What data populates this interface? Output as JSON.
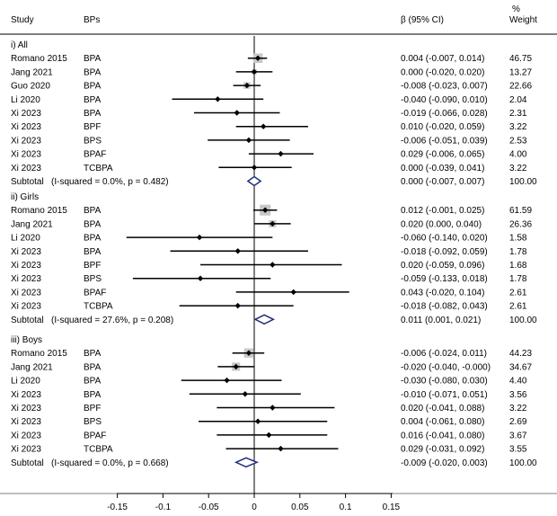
{
  "chart_data": {
    "type": "forest",
    "headers": {
      "study": "Study",
      "bps": "BPs",
      "beta": "β (95% CI)",
      "weight_line1": "%",
      "weight_line2": "Weight"
    },
    "xlim": [
      -0.2,
      0.15
    ],
    "xticks": [
      "-0.15",
      "-0.1",
      "-0.05",
      "0",
      "0.05",
      "0.1",
      "0.15"
    ],
    "xtick_values": [
      -0.15,
      -0.1,
      -0.05,
      0,
      0.05,
      0.1,
      0.15
    ],
    "groups": [
      {
        "title": "i) All",
        "rows": [
          {
            "study": "Romano 2015",
            "bp": "BPA",
            "beta": 0.004,
            "lo": -0.007,
            "hi": 0.014,
            "ci_text": "0.004 (-0.007, 0.014)",
            "weight": "46.75"
          },
          {
            "study": "Jang 2021",
            "bp": "BPA",
            "beta": 0.0,
            "lo": -0.02,
            "hi": 0.02,
            "ci_text": "0.000 (-0.020, 0.020)",
            "weight": "13.27"
          },
          {
            "study": "Guo 2020",
            "bp": "BPA",
            "beta": -0.008,
            "lo": -0.023,
            "hi": 0.007,
            "ci_text": "-0.008 (-0.023, 0.007)",
            "weight": "22.66"
          },
          {
            "study": "Li 2020",
            "bp": "BPA",
            "beta": -0.04,
            "lo": -0.09,
            "hi": 0.01,
            "ci_text": "-0.040 (-0.090, 0.010)",
            "weight": "2.04"
          },
          {
            "study": "Xi 2023",
            "bp": "BPA",
            "beta": -0.019,
            "lo": -0.066,
            "hi": 0.028,
            "ci_text": "-0.019 (-0.066, 0.028)",
            "weight": "2.31"
          },
          {
            "study": "Xi 2023",
            "bp": "BPF",
            "beta": 0.01,
            "lo": -0.02,
            "hi": 0.059,
            "ci_text": "0.010 (-0.020, 0.059)",
            "weight": "3.22"
          },
          {
            "study": "Xi 2023",
            "bp": "BPS",
            "beta": -0.006,
            "lo": -0.051,
            "hi": 0.039,
            "ci_text": "-0.006 (-0.051, 0.039)",
            "weight": "2.53"
          },
          {
            "study": "Xi 2023",
            "bp": "BPAF",
            "beta": 0.029,
            "lo": -0.006,
            "hi": 0.065,
            "ci_text": "0.029 (-0.006, 0.065)",
            "weight": "4.00"
          },
          {
            "study": "Xi 2023",
            "bp": "TCBPA",
            "beta": 0.0,
            "lo": -0.039,
            "hi": 0.041,
            "ci_text": "0.000 (-0.039, 0.041)",
            "weight": "3.22"
          }
        ],
        "subtotal": {
          "label": "Subtotal",
          "het": "(I-squared = 0.0%, p = 0.482)",
          "beta": 0.0,
          "lo": -0.007,
          "hi": 0.007,
          "ci_text": "0.000 (-0.007, 0.007)",
          "weight": "100.00"
        }
      },
      {
        "title": "ii) Girls",
        "rows": [
          {
            "study": "Romano 2015",
            "bp": "BPA",
            "beta": 0.012,
            "lo": -0.001,
            "hi": 0.025,
            "ci_text": "0.012 (-0.001, 0.025)",
            "weight": "61.59"
          },
          {
            "study": "Jang 2021",
            "bp": "BPA",
            "beta": 0.02,
            "lo": 0.0,
            "hi": 0.04,
            "ci_text": "0.020 (0.000, 0.040)",
            "weight": "26.36"
          },
          {
            "study": "Li 2020",
            "bp": "BPA",
            "beta": -0.06,
            "lo": -0.14,
            "hi": 0.02,
            "ci_text": "-0.060 (-0.140, 0.020)",
            "weight": "1.58"
          },
          {
            "study": "Xi 2023",
            "bp": "BPA",
            "beta": -0.018,
            "lo": -0.092,
            "hi": 0.059,
            "ci_text": "-0.018 (-0.092, 0.059)",
            "weight": "1.78"
          },
          {
            "study": "Xi 2023",
            "bp": "BPF",
            "beta": 0.02,
            "lo": -0.059,
            "hi": 0.096,
            "ci_text": "0.020 (-0.059, 0.096)",
            "weight": "1.68"
          },
          {
            "study": "Xi 2023",
            "bp": "BPS",
            "beta": -0.059,
            "lo": -0.133,
            "hi": 0.018,
            "ci_text": "-0.059 (-0.133, 0.018)",
            "weight": "1.78"
          },
          {
            "study": "Xi 2023",
            "bp": "BPAF",
            "beta": 0.043,
            "lo": -0.02,
            "hi": 0.104,
            "ci_text": "0.043 (-0.020, 0.104)",
            "weight": "2.61"
          },
          {
            "study": "Xi 2023",
            "bp": "TCBPA",
            "beta": -0.018,
            "lo": -0.082,
            "hi": 0.043,
            "ci_text": "-0.018 (-0.082, 0.043)",
            "weight": "2.61"
          }
        ],
        "subtotal": {
          "label": "Subtotal",
          "het": "(I-squared = 27.6%, p = 0.208)",
          "beta": 0.011,
          "lo": 0.001,
          "hi": 0.021,
          "ci_text": "0.011 (0.001, 0.021)",
          "weight": "100.00"
        }
      },
      {
        "title": "iii) Boys",
        "rows": [
          {
            "study": "Romano 2015",
            "bp": "BPA",
            "beta": -0.006,
            "lo": -0.024,
            "hi": 0.011,
            "ci_text": "-0.006 (-0.024, 0.011)",
            "weight": "44.23"
          },
          {
            "study": "Jang 2021",
            "bp": "BPA",
            "beta": -0.02,
            "lo": -0.04,
            "hi": -0.0,
            "ci_text": "-0.020 (-0.040, -0.000)",
            "weight": "34.67"
          },
          {
            "study": "Li 2020",
            "bp": "BPA",
            "beta": -0.03,
            "lo": -0.08,
            "hi": 0.03,
            "ci_text": "-0.030 (-0.080, 0.030)",
            "weight": "4.40"
          },
          {
            "study": "Xi 2023",
            "bp": "BPA",
            "beta": -0.01,
            "lo": -0.071,
            "hi": 0.051,
            "ci_text": "-0.010 (-0.071, 0.051)",
            "weight": "3.56"
          },
          {
            "study": "Xi 2023",
            "bp": "BPF",
            "beta": 0.02,
            "lo": -0.041,
            "hi": 0.088,
            "ci_text": "0.020 (-0.041, 0.088)",
            "weight": "3.22"
          },
          {
            "study": "Xi 2023",
            "bp": "BPS",
            "beta": 0.004,
            "lo": -0.061,
            "hi": 0.08,
            "ci_text": "0.004 (-0.061, 0.080)",
            "weight": "2.69"
          },
          {
            "study": "Xi 2023",
            "bp": "BPAF",
            "beta": 0.016,
            "lo": -0.041,
            "hi": 0.08,
            "ci_text": "0.016 (-0.041, 0.080)",
            "weight": "3.67"
          },
          {
            "study": "Xi 2023",
            "bp": "TCBPA",
            "beta": 0.029,
            "lo": -0.031,
            "hi": 0.092,
            "ci_text": "0.029 (-0.031, 0.092)",
            "weight": "3.55"
          }
        ],
        "subtotal": {
          "label": "Subtotal",
          "het": "(I-squared = 0.0%, p = 0.668)",
          "beta": -0.009,
          "lo": -0.02,
          "hi": 0.003,
          "ci_text": "-0.009 (-0.020, 0.003)",
          "weight": "100.00"
        }
      }
    ],
    "colors": {
      "line": "#000000",
      "weight_square": "#c8c8c8",
      "diamond": "#1f2f7a",
      "zero_line": "#000000"
    }
  }
}
